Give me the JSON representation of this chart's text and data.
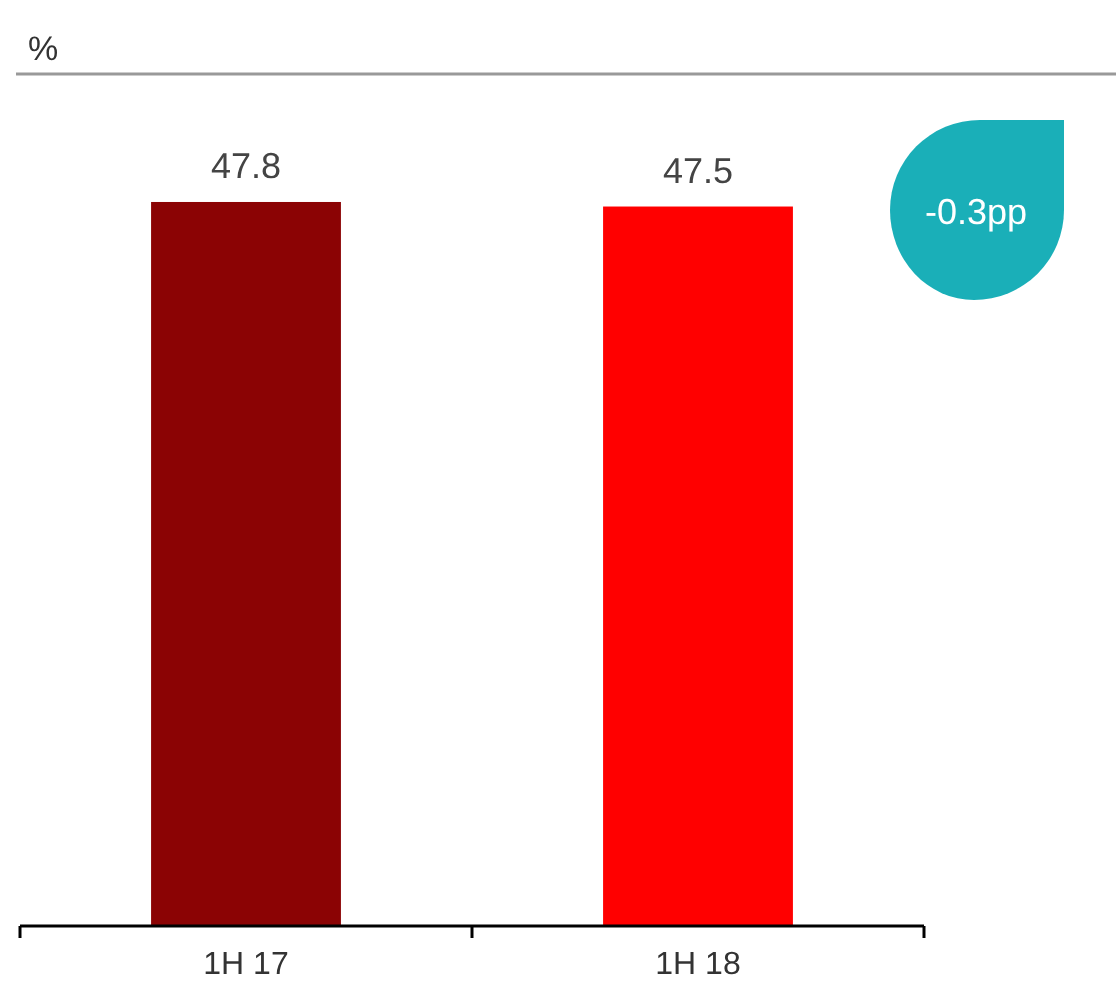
{
  "chart_data": {
    "type": "bar",
    "ylabel": "%",
    "categories": [
      "1H 17",
      "1H 18"
    ],
    "values": [
      47.8,
      47.5
    ],
    "colors": [
      "#8b0304",
      "#ff0000"
    ],
    "data_labels": true,
    "annotations": [
      "-0.3pp"
    ]
  }
}
